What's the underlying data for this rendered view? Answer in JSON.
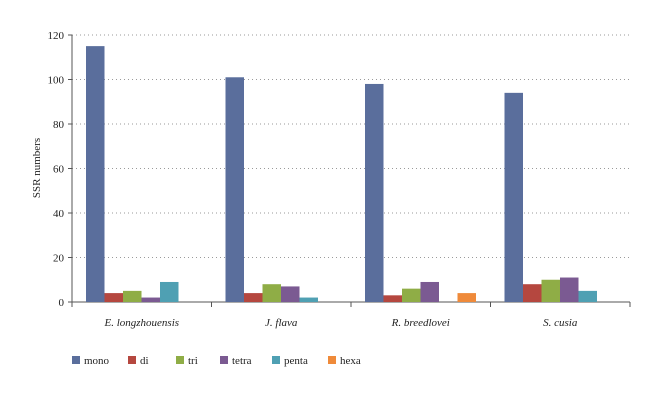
{
  "chart_data": {
    "type": "bar",
    "title": "",
    "xlabel": "",
    "ylabel": "SSR numbers",
    "ylim": [
      0,
      120
    ],
    "yticks": [
      0,
      20,
      40,
      60,
      80,
      100,
      120
    ],
    "grid": true,
    "legend_placement": "bottom",
    "categories": [
      "E. longzhouensis",
      "J. flava",
      "R. breedlovei",
      "S. cusia"
    ],
    "series": [
      {
        "name": "mono",
        "color": "#5a6e9c",
        "values": [
          115,
          101,
          98,
          94
        ]
      },
      {
        "name": "di",
        "color": "#b5473f",
        "values": [
          4,
          4,
          3,
          8
        ]
      },
      {
        "name": "tri",
        "color": "#8fad46",
        "values": [
          5,
          8,
          6,
          10
        ]
      },
      {
        "name": "tetra",
        "color": "#7b5a92",
        "values": [
          2,
          7,
          9,
          11
        ]
      },
      {
        "name": "penta",
        "color": "#4fa0b3",
        "values": [
          9,
          2,
          0,
          5
        ]
      },
      {
        "name": "hexa",
        "color": "#ef8a3a",
        "values": [
          0,
          0,
          4,
          0
        ]
      }
    ]
  }
}
